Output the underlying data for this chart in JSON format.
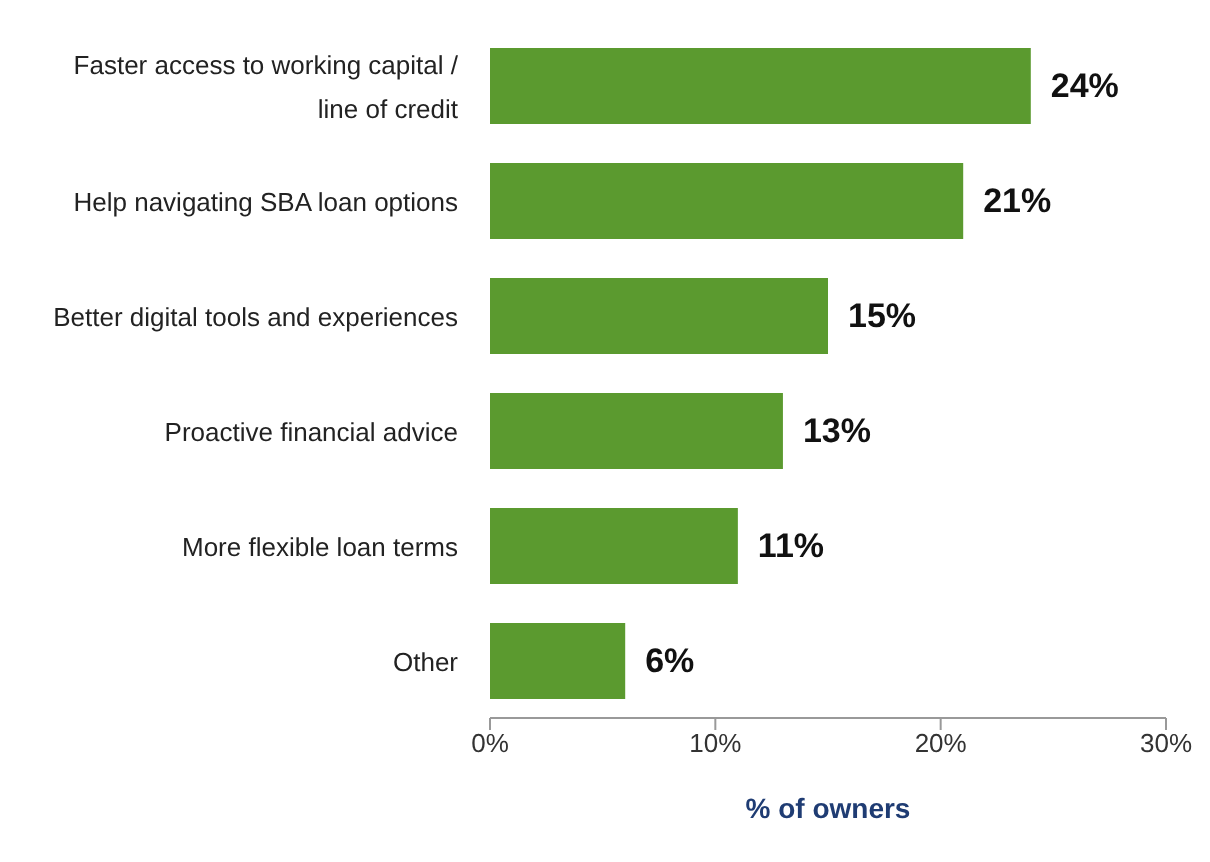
{
  "chart_data": {
    "type": "bar",
    "orientation": "horizontal",
    "categories": [
      "Faster access to working capital / line of credit",
      "Help navigating SBA loan options",
      "Better digital tools and experiences",
      "Proactive financial advice",
      "More flexible loan terms",
      "Other"
    ],
    "values": [
      24,
      21,
      15,
      13,
      11,
      6
    ],
    "value_labels": [
      "24%",
      "21%",
      "15%",
      "13%",
      "11%",
      "6%"
    ],
    "color": "#5b9a2f",
    "xlabel": "% of owners",
    "xlim": [
      0,
      30
    ],
    "xticks": [
      {
        "value": 0,
        "label": "0%"
      },
      {
        "value": 10,
        "label": "10%"
      },
      {
        "value": 20,
        "label": "20%"
      },
      {
        "value": 30,
        "label": "30%"
      }
    ],
    "grid": false,
    "legend": false
  }
}
